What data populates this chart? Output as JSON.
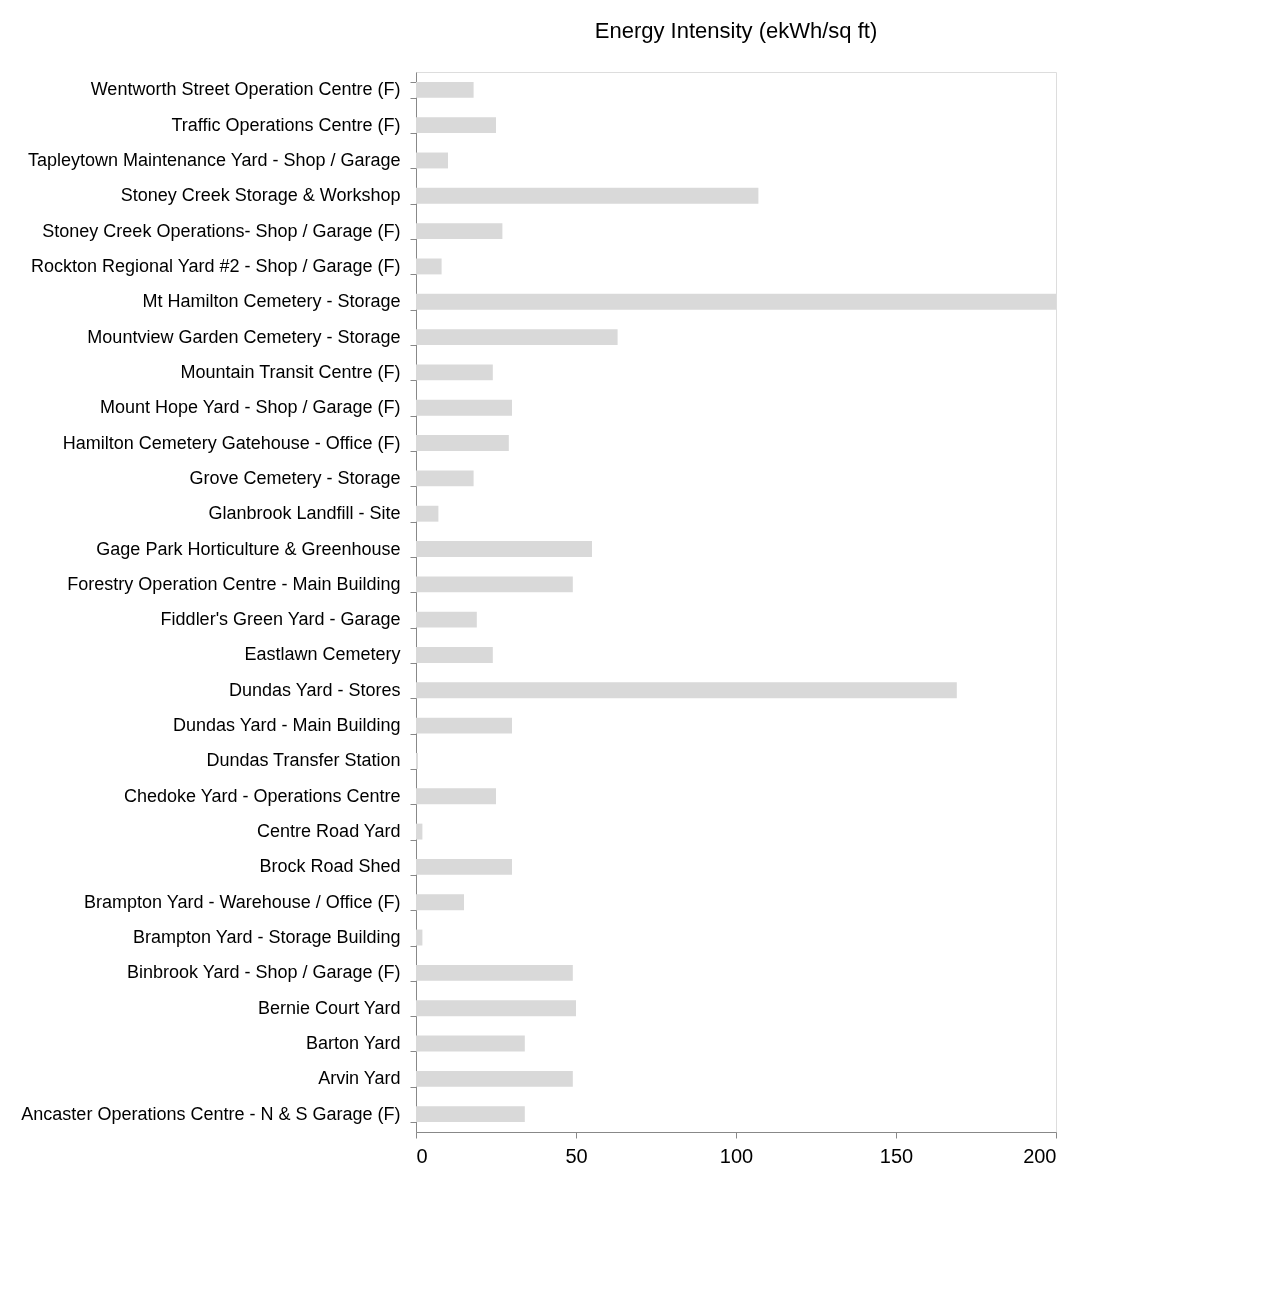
{
  "chart_data": {
    "type": "bar",
    "orientation": "horizontal",
    "title": "Energy Intensity (ekWh/sq ft)",
    "categories": [
      "Wentworth Street Operation Centre (F)",
      "Traffic Operations Centre (F)",
      "Tapleytown Maintenance Yard - Shop / Garage",
      "Stoney Creek Storage & Workshop",
      "Stoney Creek Operations- Shop / Garage (F)",
      "Rockton Regional Yard #2 - Shop / Garage (F)",
      "Mt Hamilton Cemetery - Storage",
      "Mountview Garden Cemetery - Storage",
      "Mountain Transit Centre (F)",
      "Mount Hope Yard - Shop / Garage (F)",
      "Hamilton Cemetery Gatehouse - Office (F)",
      "Grove Cemetery - Storage",
      "Glanbrook Landfill - Site",
      "Gage Park Horticulture & Greenhouse",
      "Forestry Operation Centre - Main Building",
      "Fiddler's Green Yard - Garage",
      "Eastlawn Cemetery",
      "Dundas Yard - Stores",
      "Dundas Yard - Main Building",
      "Dundas Transfer Station",
      "Chedoke Yard - Operations Centre",
      "Centre Road Yard",
      "Brock Road Shed",
      "Brampton Yard - Warehouse / Office (F)",
      "Brampton Yard - Storage Building",
      "Binbrook Yard - Shop / Garage (F)",
      "Bernie Court Yard",
      "Barton Yard",
      "Arvin Yard",
      "Ancaster Operations Centre - N & S Garage (F)"
    ],
    "values": [
      18,
      25,
      10,
      107,
      27,
      8,
      200,
      63,
      24,
      30,
      29,
      18,
      7,
      55,
      49,
      19,
      24,
      169,
      30,
      0.6,
      25,
      2,
      30,
      15,
      2,
      49,
      50,
      34,
      49,
      34
    ],
    "color": "#d9d9d9",
    "xlim": [
      0,
      200
    ],
    "xticks": [
      0,
      50,
      100,
      150,
      200
    ],
    "grid": false
  }
}
